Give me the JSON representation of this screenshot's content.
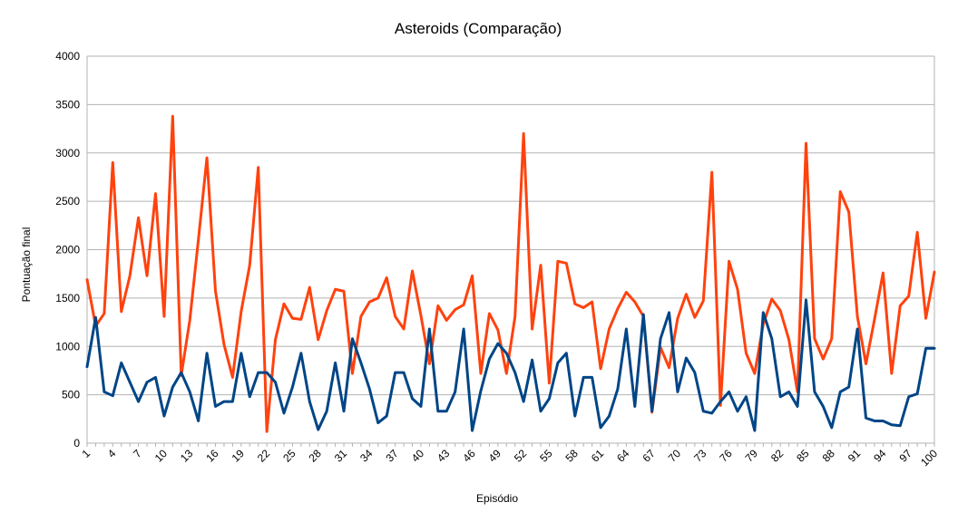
{
  "chart_data": {
    "type": "line",
    "title": "Asteroids (Comparação)",
    "xlabel": "Episódio",
    "ylabel": "Pontuação final",
    "ylim": [
      0,
      4000
    ],
    "yticks": [
      0,
      500,
      1000,
      1500,
      2000,
      2500,
      3000,
      3500,
      4000
    ],
    "xlim": [
      1,
      100
    ],
    "xtick_labels": [
      "1",
      "4",
      "7",
      "10",
      "13",
      "16",
      "19",
      "22",
      "25",
      "28",
      "31",
      "34",
      "37",
      "40",
      "43",
      "46",
      "49",
      "52",
      "55",
      "58",
      "61",
      "64",
      "67",
      "70",
      "73",
      "76",
      "79",
      "82",
      "85",
      "88",
      "91",
      "94",
      "97",
      "100"
    ],
    "grid": "horizontal",
    "legend": "none",
    "series": [
      {
        "color": "#ff420e",
        "values": [
          1690,
          1210,
          1340,
          2900,
          1360,
          1730,
          2330,
          1730,
          2580,
          1310,
          3380,
          700,
          1270,
          2100,
          2950,
          1570,
          1020,
          680,
          1360,
          1840,
          2850,
          120,
          1070,
          1440,
          1290,
          1280,
          1610,
          1070,
          1370,
          1590,
          1570,
          720,
          1310,
          1460,
          1500,
          1710,
          1310,
          1180,
          1780,
          1320,
          820,
          1420,
          1270,
          1380,
          1430,
          1730,
          720,
          1340,
          1170,
          720,
          1310,
          3200,
          1180,
          1840,
          620,
          1880,
          1860,
          1440,
          1400,
          1460,
          770,
          1180,
          1390,
          1560,
          1460,
          1310,
          320,
          990,
          780,
          1290,
          1540,
          1300,
          1470,
          2800,
          390,
          1880,
          1590,
          930,
          720,
          1230,
          1490,
          1370,
          1070,
          530,
          3100,
          1080,
          870,
          1080,
          2600,
          2390,
          1310,
          820,
          1280,
          1760,
          720,
          1420,
          1520,
          2180,
          1290,
          1770
        ]
      },
      {
        "color": "#004586",
        "values": [
          790,
          1300,
          530,
          490,
          830,
          630,
          430,
          630,
          680,
          280,
          580,
          730,
          530,
          230,
          930,
          380,
          430,
          430,
          930,
          480,
          730,
          730,
          630,
          310,
          580,
          930,
          430,
          140,
          330,
          830,
          330,
          1080,
          830,
          560,
          210,
          280,
          730,
          730,
          460,
          380,
          1180,
          330,
          330,
          530,
          1180,
          130,
          540,
          870,
          1030,
          930,
          730,
          430,
          860,
          330,
          460,
          830,
          930,
          280,
          680,
          680,
          160,
          280,
          560,
          1180,
          380,
          1330,
          330,
          1080,
          1350,
          530,
          880,
          730,
          330,
          310,
          430,
          530,
          330,
          480,
          130,
          1350,
          1080,
          480,
          530,
          380,
          1480,
          530,
          380,
          160,
          530,
          580,
          1180,
          260,
          230,
          230,
          190,
          180,
          480,
          510,
          980,
          980
        ]
      }
    ]
  }
}
